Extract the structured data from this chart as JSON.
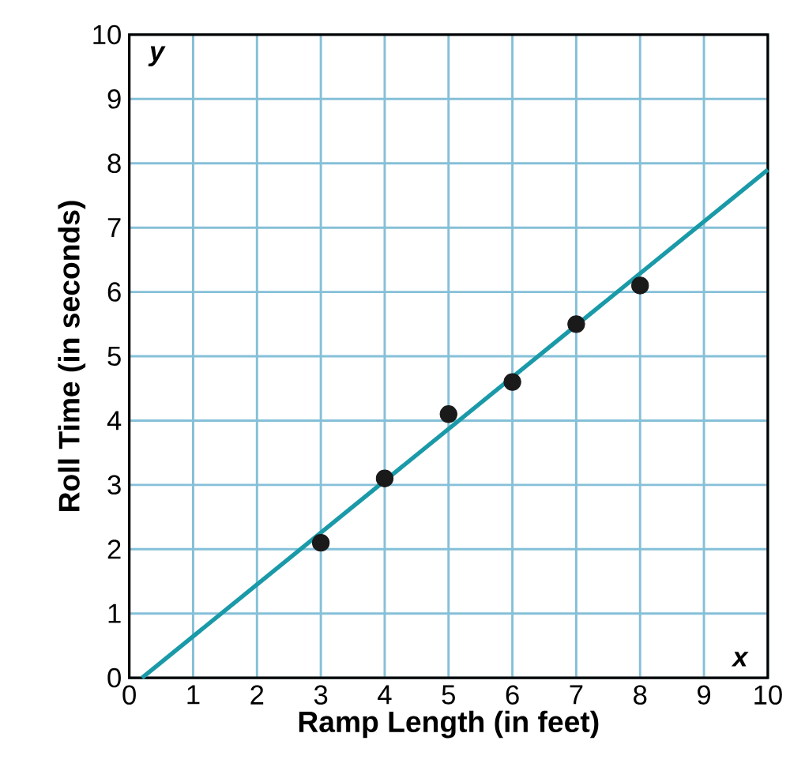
{
  "chart_data": {
    "type": "scatter",
    "xlabel": "Ramp Length (in feet)",
    "ylabel": "Roll Time (in seconds)",
    "xlim": [
      0,
      10
    ],
    "ylim": [
      0,
      10
    ],
    "xticks": [
      0,
      1,
      2,
      3,
      4,
      5,
      6,
      7,
      8,
      9,
      10
    ],
    "yticks": [
      0,
      1,
      2,
      3,
      4,
      5,
      6,
      7,
      8,
      9,
      10
    ],
    "grid": true,
    "annotations": [
      "y",
      "x"
    ],
    "series": [
      {
        "type": "scatter",
        "color": "#1a1a1a",
        "x": [
          3,
          4,
          5,
          6,
          7,
          8
        ],
        "values": [
          2.1,
          3.1,
          4.1,
          4.6,
          5.5,
          6.1
        ]
      },
      {
        "type": "line",
        "color": "#1a9aa8",
        "x": [
          0.2,
          10
        ],
        "values": [
          0,
          7.9
        ]
      }
    ]
  }
}
